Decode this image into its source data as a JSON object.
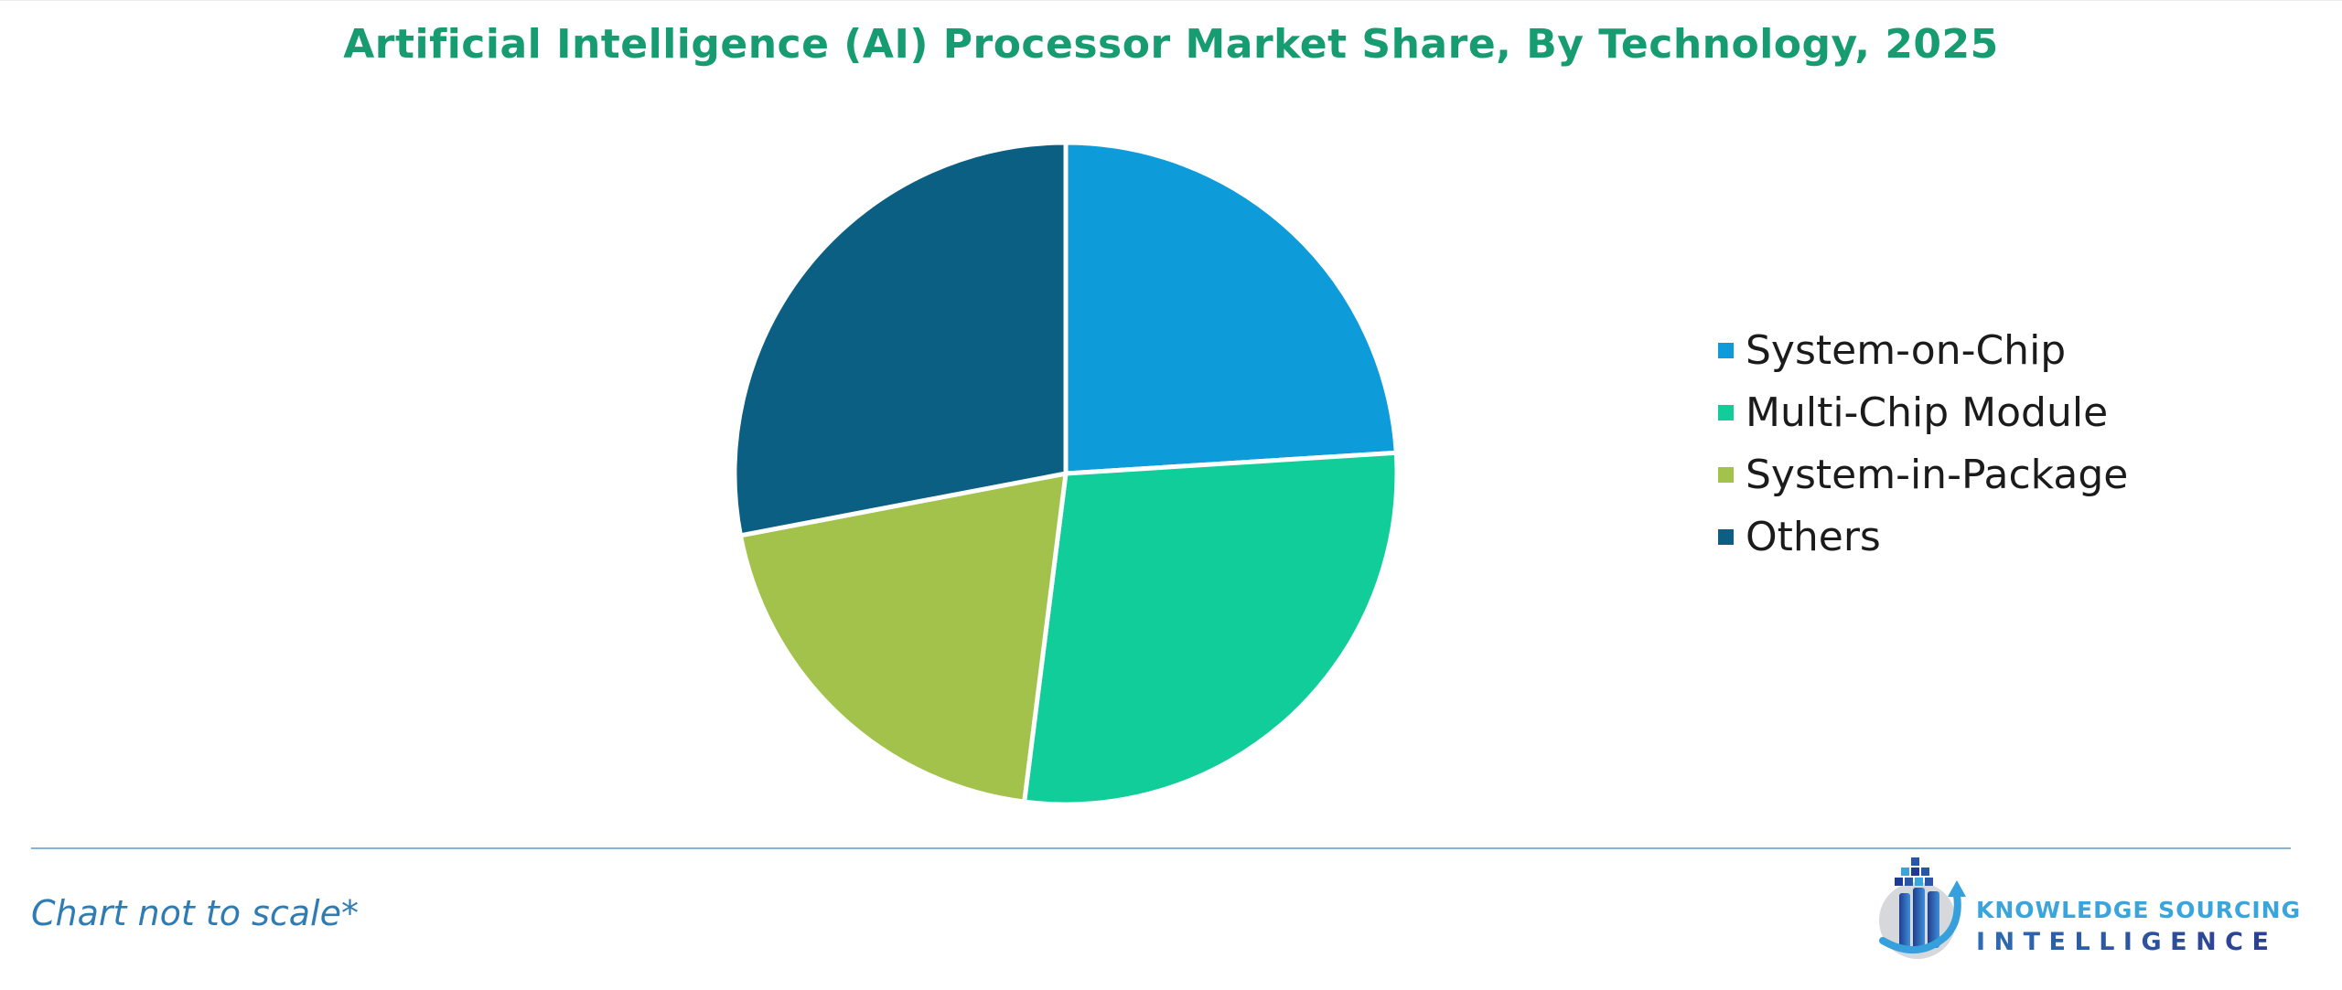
{
  "title": "Artificial Intelligence (AI) Processor Market Share, By Technology, 2025",
  "footer": {
    "note": "Chart not to scale*",
    "brand_line1": "KNOWLEDGE SOURCING",
    "brand_line2": "INTELLIGENCE"
  },
  "colors": {
    "title_green": "#169c70",
    "note_blue": "#2f7cb5",
    "divider_blue": "#85b4d6",
    "legend_text": "#1b1b1b",
    "brand_light_blue": "#3aa4dc",
    "brand_dark_blue": "#2c3a8d",
    "slice_gap_white": "#ffffff"
  },
  "chart_data": {
    "type": "pie",
    "title": "Artificial Intelligence (AI) Processor Market Share, By Technology, 2025",
    "units": "percent (estimated from slice angles; no data labels shown)",
    "start_angle_deg": 0,
    "direction": "clockwise",
    "legend_position": "right",
    "series": [
      {
        "label": "System-on-Chip",
        "value": 24,
        "color": "#0d9bda"
      },
      {
        "label": "Multi-Chip Module",
        "value": 28,
        "color": "#11cd9a"
      },
      {
        "label": "System-in-Package",
        "value": 20,
        "color": "#a3c24b"
      },
      {
        "label": "Others",
        "value": 28,
        "color": "#0a5f83"
      }
    ]
  }
}
